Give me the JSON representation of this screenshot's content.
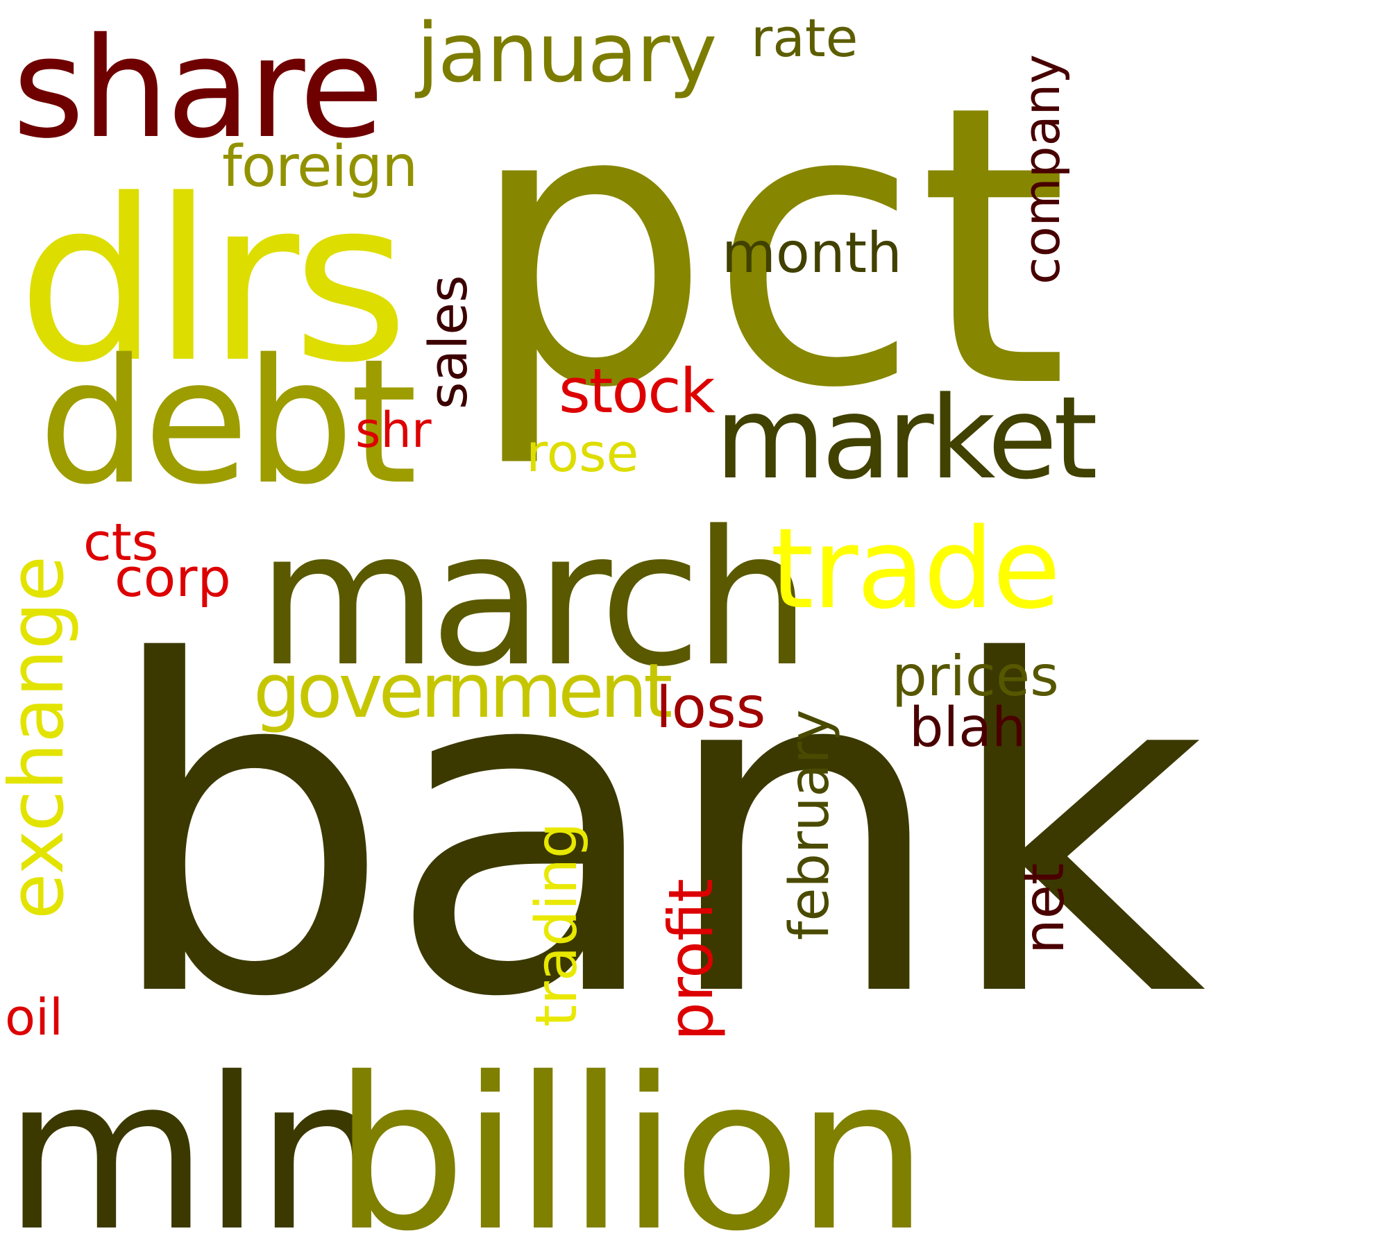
{
  "words": [
    {
      "text": "bank",
      "color": "#3b3900"
    },
    {
      "text": "pct",
      "color": "#868600"
    },
    {
      "text": "mln",
      "color": "#3b3900"
    },
    {
      "text": "billion",
      "color": "#7f7f00"
    },
    {
      "text": "dlrs",
      "color": "#dddd00"
    },
    {
      "text": "march",
      "color": "#5a5900"
    },
    {
      "text": "debt",
      "color": "#9d9d00"
    },
    {
      "text": "share",
      "color": "#6f0000"
    },
    {
      "text": "market",
      "color": "#414100"
    },
    {
      "text": "trade",
      "color": "#ffff00"
    },
    {
      "text": "january",
      "color": "#7c7c00"
    },
    {
      "text": "government",
      "color": "#c6c600"
    },
    {
      "text": "foreign",
      "color": "#929200"
    },
    {
      "text": "exchange",
      "color": "#e3e300"
    },
    {
      "text": "company",
      "color": "#480000"
    },
    {
      "text": "sales",
      "color": "#3c0000"
    },
    {
      "text": "february",
      "color": "#4a4a00"
    },
    {
      "text": "prices",
      "color": "#575700"
    },
    {
      "text": "stock",
      "color": "#dd0000"
    },
    {
      "text": "month",
      "color": "#414100"
    },
    {
      "text": "trading",
      "color": "#e8e800"
    },
    {
      "text": "profit",
      "color": "#dd0000"
    },
    {
      "text": "rate",
      "color": "#5d5d00"
    },
    {
      "text": "loss",
      "color": "#a00000"
    },
    {
      "text": "blah",
      "color": "#4a0000"
    },
    {
      "text": "rose",
      "color": "#dddd00"
    },
    {
      "text": "net",
      "color": "#4a0000"
    },
    {
      "text": "corp",
      "color": "#dd0000"
    },
    {
      "text": "cts",
      "color": "#dd0000"
    },
    {
      "text": "shr",
      "color": "#dd0000"
    },
    {
      "text": "oil",
      "color": "#dd0000"
    }
  ]
}
